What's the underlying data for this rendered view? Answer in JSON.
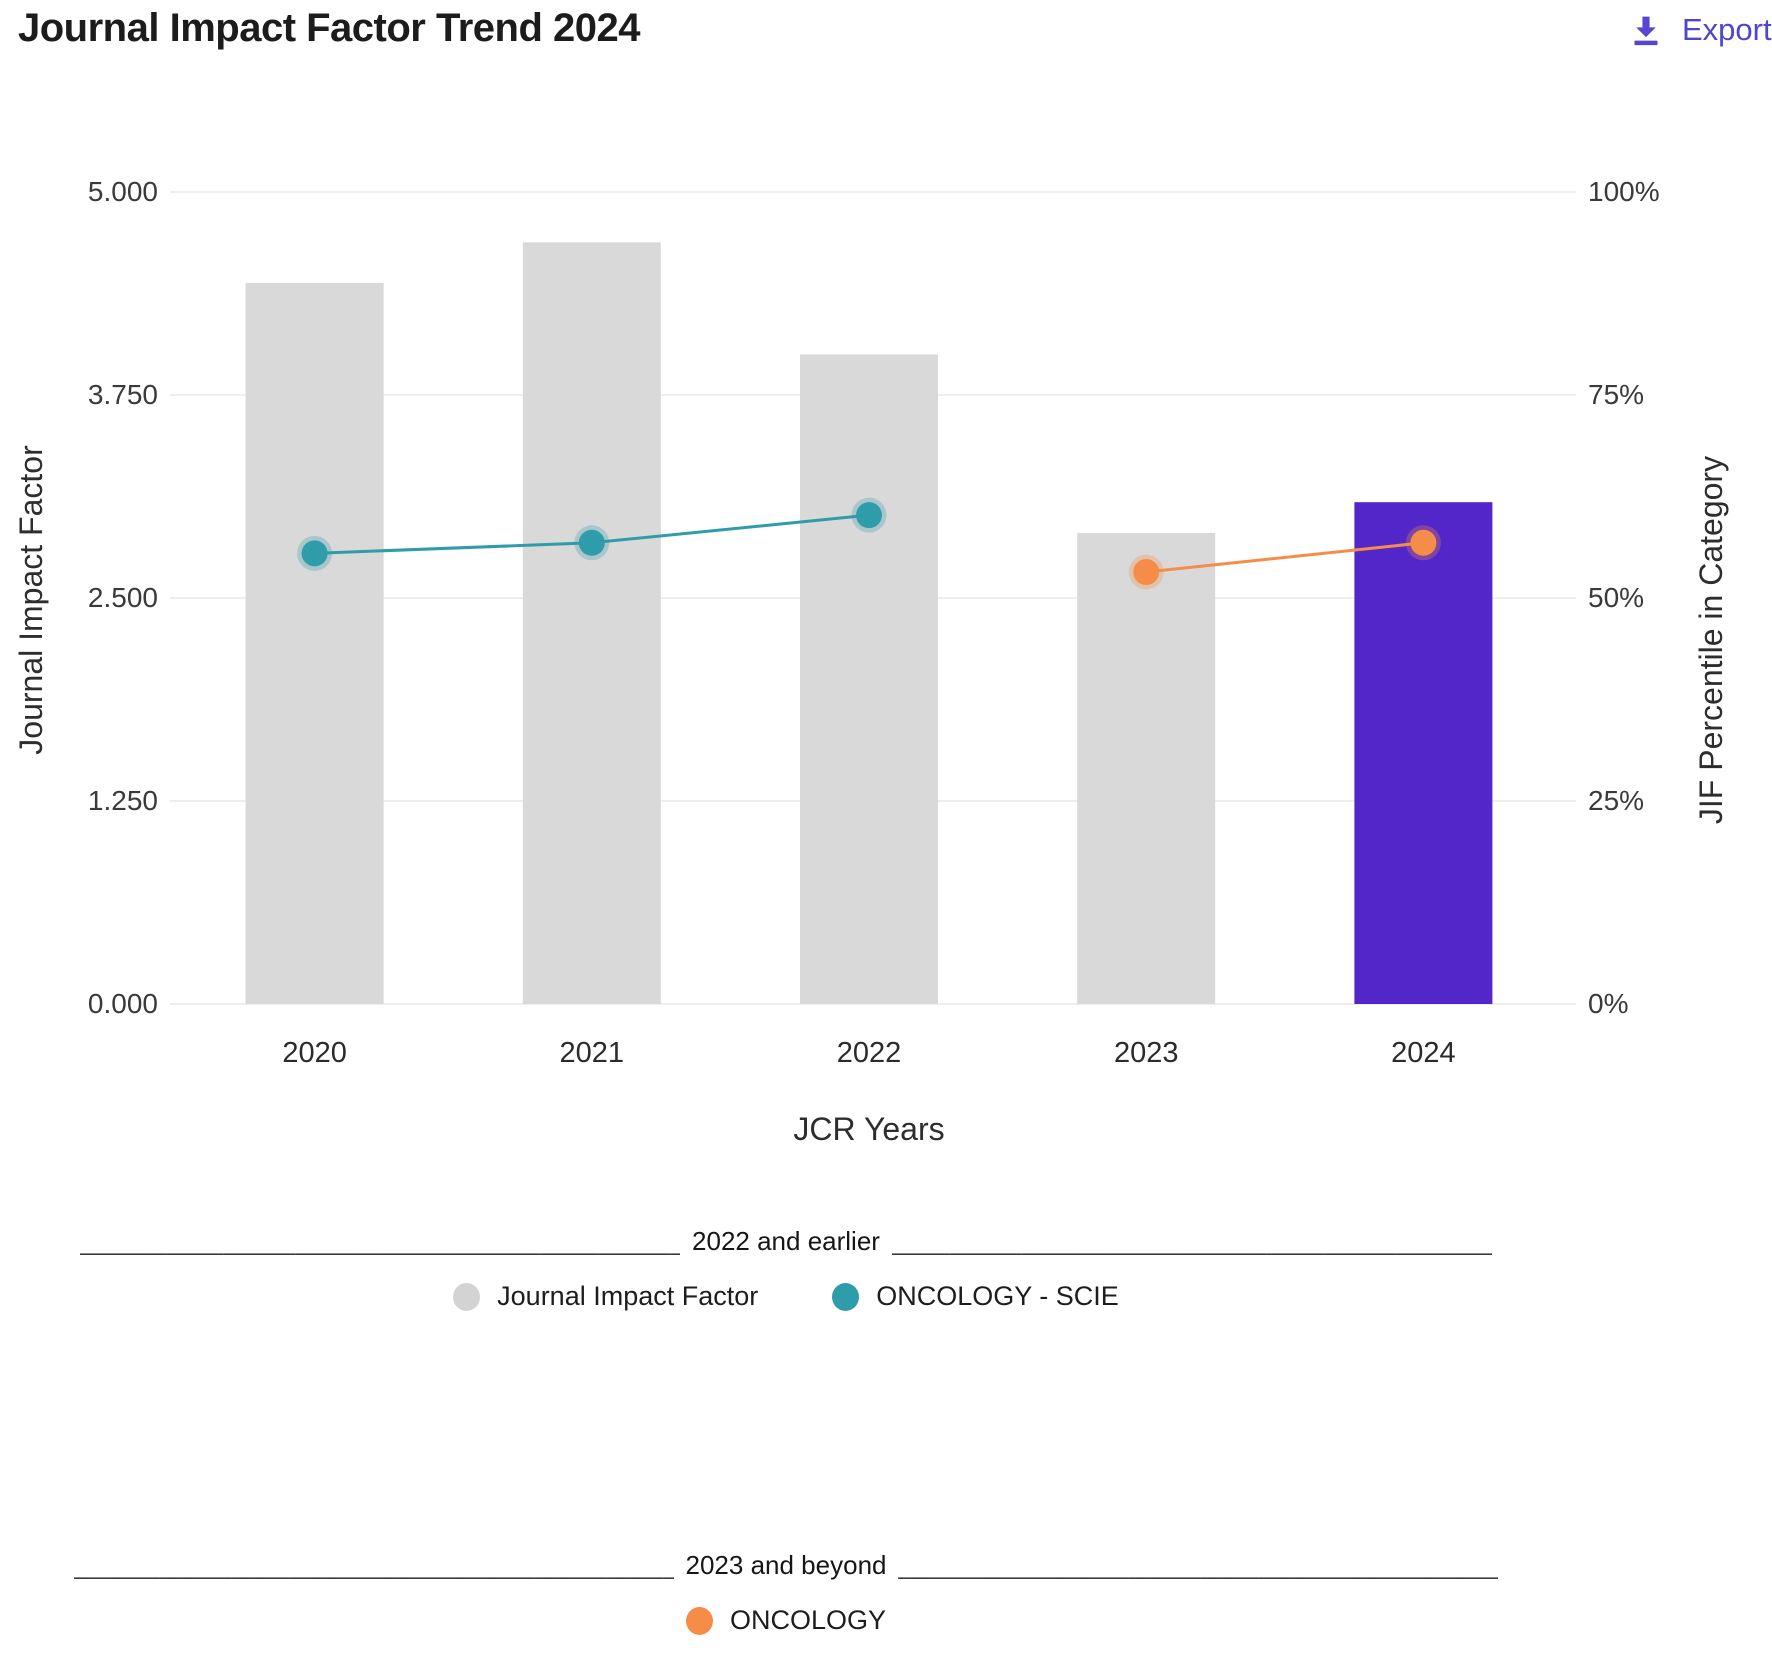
{
  "header": {
    "title": "Journal Impact Factor Trend 2024",
    "export_label": "Export",
    "export_color": "#4f46cf"
  },
  "chart_data": {
    "type": "bar",
    "subtype": "combo bar + line, dual y-axis",
    "categories": [
      "2020",
      "2021",
      "2022",
      "2023",
      "2024"
    ],
    "x_axis_label": "JCR Years",
    "left_axis": {
      "title": "Journal Impact Factor",
      "ticks": [
        "5.000",
        "3.750",
        "2.500",
        "1.250",
        "0.000"
      ],
      "range": [
        0,
        5
      ]
    },
    "right_axis": {
      "title": "JIF Percentile in Category",
      "ticks": [
        "100%",
        "75%",
        "50%",
        "25%",
        "0%"
      ],
      "range": [
        0,
        100
      ]
    },
    "grid": true,
    "legend_position": "bottom",
    "series": [
      {
        "name": "Journal Impact Factor",
        "type": "bar",
        "axis": "left",
        "values": [
          4.44,
          4.69,
          4.0,
          2.9,
          3.09
        ],
        "bar_colors": [
          "#d9d9d9",
          "#d9d9d9",
          "#d9d9d9",
          "#d9d9d9",
          "#5226c9"
        ]
      },
      {
        "name": "ONCOLOGY - SCIE",
        "type": "line",
        "axis": "right",
        "values": [
          55.5,
          56.8,
          60.2,
          null,
          null
        ],
        "color": "#2f9ca9",
        "halo": "rgba(47,156,169,0.28)"
      },
      {
        "name": "ONCOLOGY",
        "type": "line",
        "axis": "right",
        "values": [
          null,
          null,
          null,
          53.2,
          56.8
        ],
        "color": "#f58d49",
        "halo": "rgba(245,141,73,0.3)"
      }
    ],
    "colors": {
      "bar_default": "#d9d9d9",
      "bar_highlight_2024": "#5226c9",
      "line_oncology_scie": "#2f9ca9",
      "line_oncology": "#f58d49",
      "gridline": "#e8e8e8"
    }
  },
  "legend_sections": [
    {
      "heading": "2022 and earlier",
      "rule_left": "______________________________________________",
      "rule_right": "______________________________________________",
      "items": [
        {
          "label": "Journal Impact Factor",
          "color": "#d3d3d3"
        },
        {
          "label": "ONCOLOGY - SCIE",
          "color": "#2f9ca9"
        }
      ]
    },
    {
      "heading": "2023 and beyond",
      "rule_left": "______________________________________________",
      "rule_right": "______________________________________________",
      "items": [
        {
          "label": "ONCOLOGY",
          "color": "#f58d49"
        }
      ]
    }
  ]
}
